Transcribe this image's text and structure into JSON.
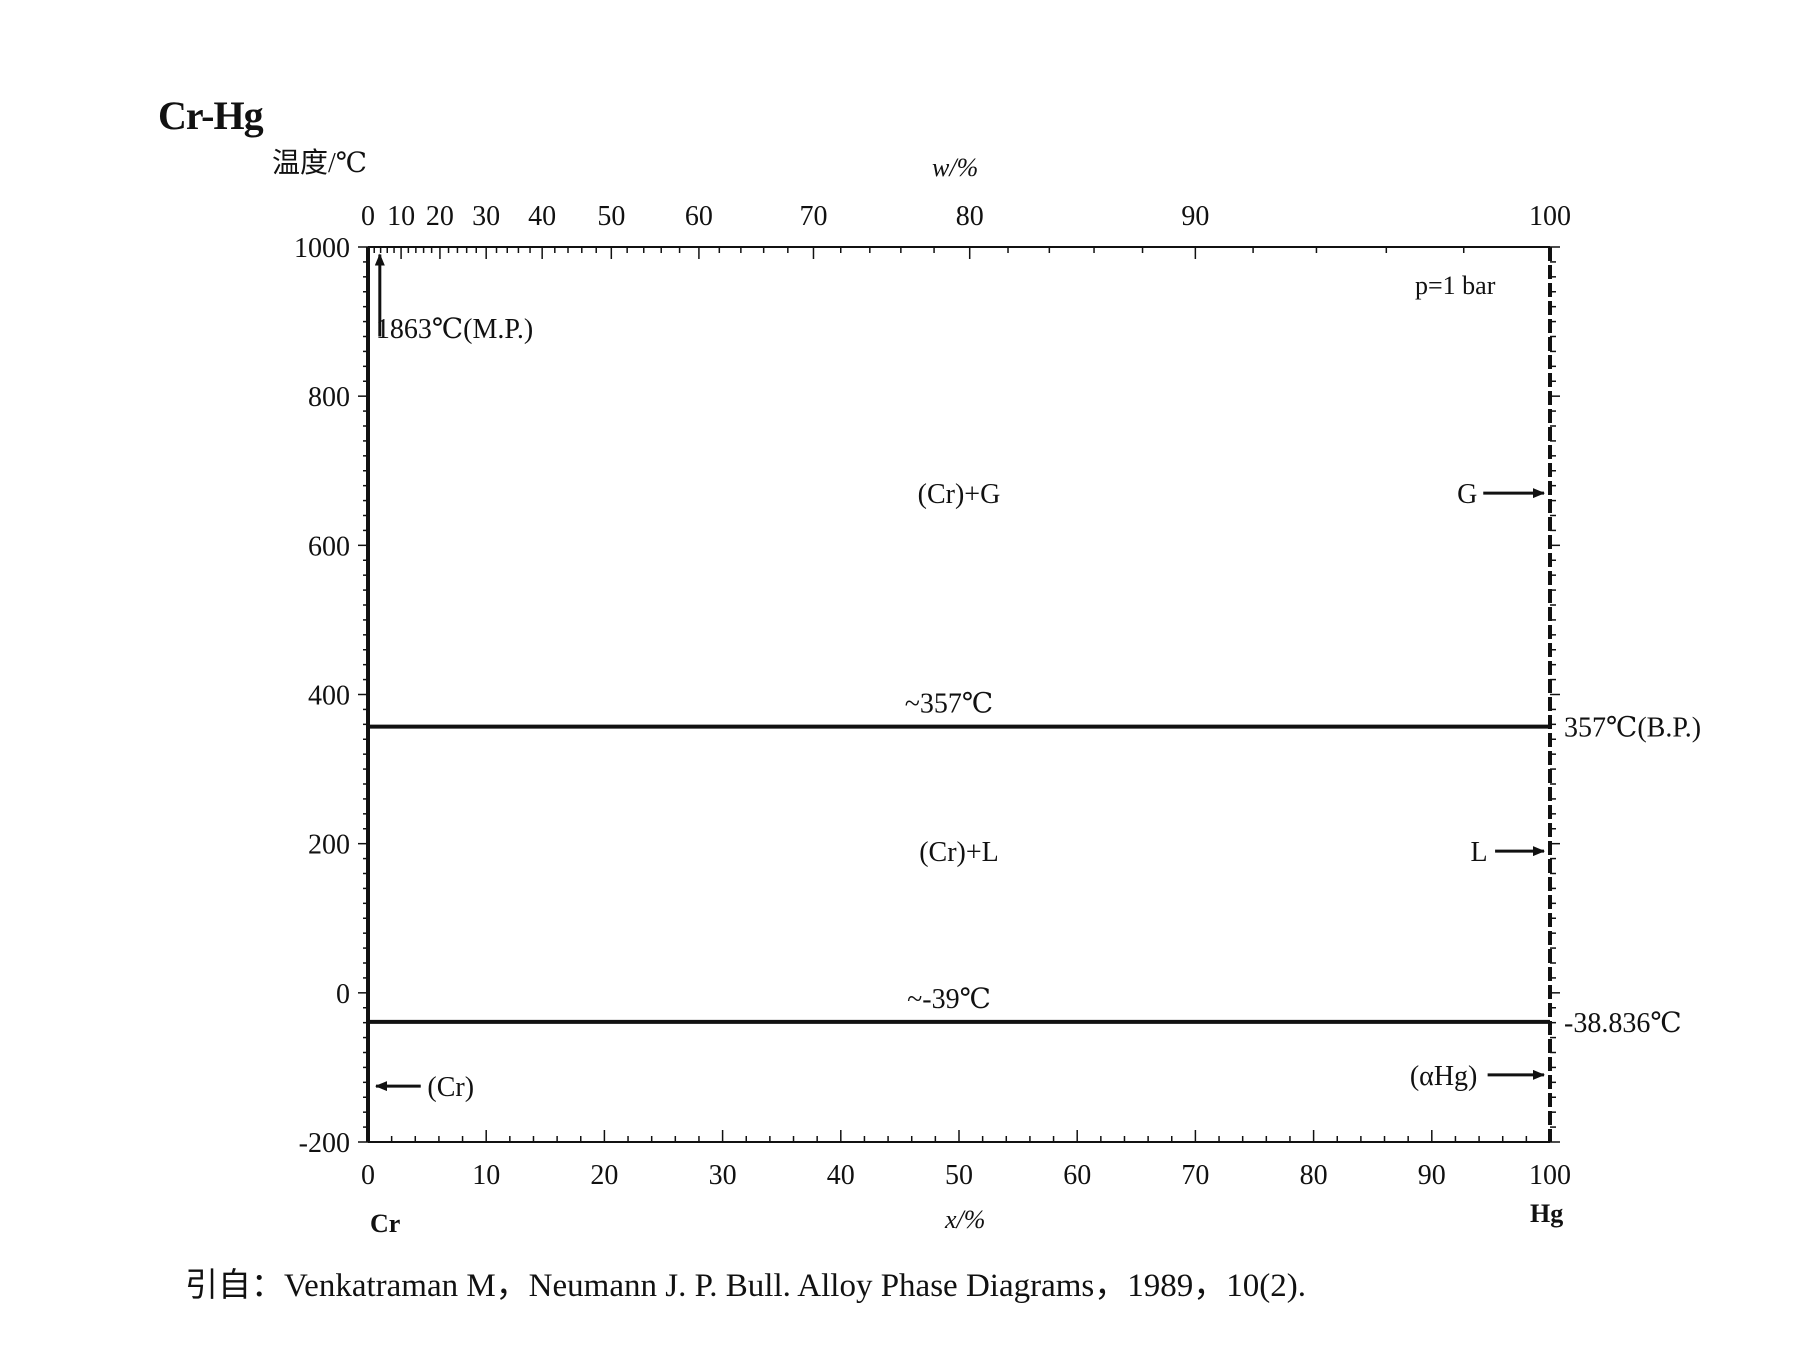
{
  "title": "Cr-Hg",
  "citation": "引自：Venkatraman M，Neumann J. P. Bull. Alloy Phase Diagrams，1989，10(2).",
  "chart_data": {
    "type": "line",
    "title": "Cr-Hg",
    "ylabel": "温度/℃",
    "xlabel": "x/%",
    "x2label": "w/%",
    "ylim": [
      -200,
      1000
    ],
    "xlim": [
      0,
      100
    ],
    "yticks": [
      -200,
      0,
      200,
      400,
      600,
      800,
      1000
    ],
    "xticks": [
      0,
      10,
      20,
      30,
      40,
      50,
      60,
      70,
      80,
      90,
      100
    ],
    "wticks": [
      0,
      10,
      20,
      30,
      40,
      50,
      60,
      70,
      80,
      90,
      100
    ],
    "x_left_label": "Cr",
    "x_right_label": "Hg",
    "pressure_label": "p=1 bar",
    "series": [
      {
        "name": "~357℃",
        "x": [
          0,
          100
        ],
        "y": [
          357,
          357
        ]
      },
      {
        "name": "~-39℃",
        "x": [
          0,
          100
        ],
        "y": [
          -39,
          -39
        ]
      }
    ],
    "annotations": [
      {
        "text": "1863℃(M.P.)",
        "x": 1,
        "y": 905
      },
      {
        "text": "357℃(B.P.)",
        "x": 100,
        "y": 357
      },
      {
        "text": "-38.836℃",
        "x": 100,
        "y": -39
      },
      {
        "text": "(Cr)+G",
        "x": 50,
        "y": 670
      },
      {
        "text": "(Cr)+L",
        "x": 50,
        "y": 190
      },
      {
        "text": "G",
        "x": 93,
        "y": 670
      },
      {
        "text": "L",
        "x": 94,
        "y": 190
      },
      {
        "text": "(Cr)",
        "x": 7,
        "y": -125
      },
      {
        "text": "(αHg)",
        "x": 91,
        "y": -110
      }
    ]
  }
}
